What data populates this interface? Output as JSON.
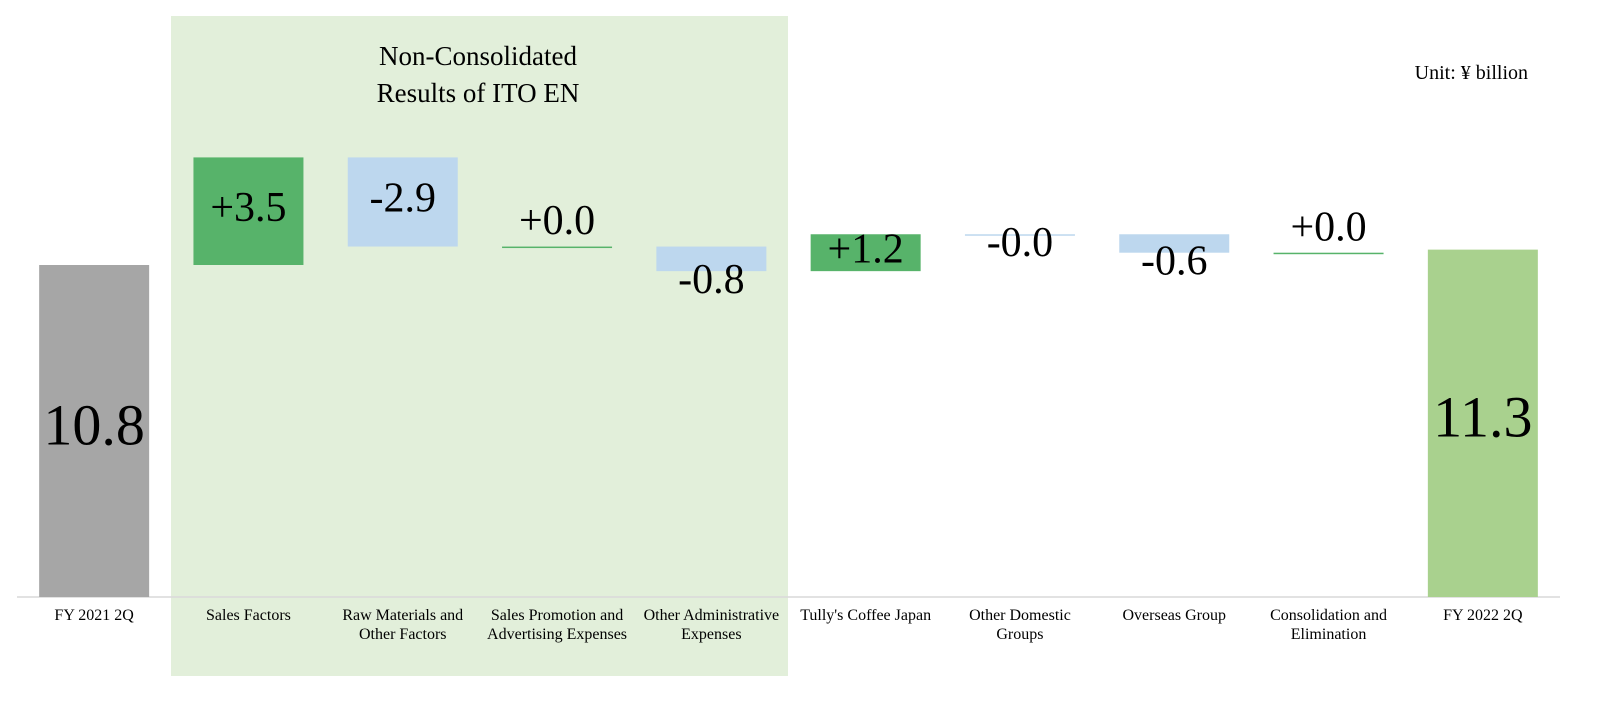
{
  "chart_data": {
    "type": "waterfall",
    "annotation": "Non-Consolidated Results of ITO EN",
    "unit_label": "Unit: ¥ billion",
    "categories": [
      "FY 2021 2Q",
      "Sales Factors",
      "Raw Materials and Other Factors",
      "Sales Promotion and Advertising Expenses",
      "Other Administrative Expenses",
      "Tully's Coffee Japan",
      "Other Domestic Groups",
      "Overseas Group",
      "Consolidation and Elimination",
      "FY 2022 2Q"
    ],
    "measure": [
      "total",
      "relative",
      "relative",
      "relative",
      "relative",
      "relative",
      "relative",
      "relative",
      "relative",
      "total"
    ],
    "values": [
      10.8,
      3.5,
      -2.9,
      0.0,
      -0.8,
      1.2,
      -0.0,
      -0.6,
      0.0,
      11.3
    ],
    "value_labels": [
      "10.8",
      "+3.5",
      "-2.9",
      "+0.0",
      "-0.8",
      "+1.2",
      "-0.0",
      "-0.6",
      "+0.0",
      "11.3"
    ],
    "colors": [
      "#a6a6a6",
      "#57b36a",
      "#bdd7ee",
      "#57b36a",
      "#bdd7ee",
      "#57b36a",
      "#bdd7ee",
      "#bdd7ee",
      "#57b36a",
      "#a9d18e"
    ],
    "ylim": [
      0,
      18.9
    ]
  }
}
